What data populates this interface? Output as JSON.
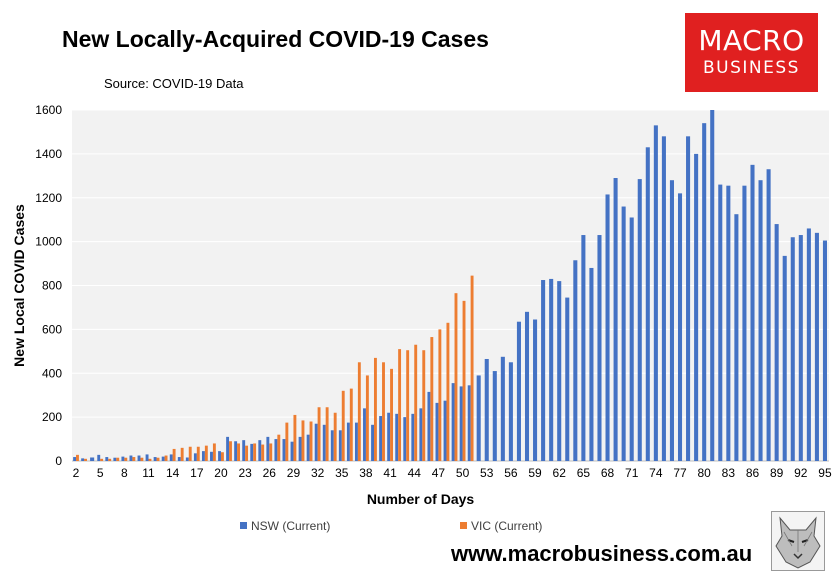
{
  "title": "New Locally-Acquired COVID-19 Cases",
  "source": "Source: COVID-19 Data",
  "logo": {
    "line1": "MACRO",
    "line2": "BUSINESS",
    "bg_color": "#e02020"
  },
  "website": "www.macrobusiness.com.au",
  "chart_data": {
    "type": "bar",
    "title": "New Locally-Acquired COVID-19 Cases",
    "xlabel": "Number of Days",
    "ylabel": "New Local COVID Cases",
    "ylim": [
      0,
      1600
    ],
    "yticks": [
      0,
      200,
      400,
      600,
      800,
      1000,
      1200,
      1400,
      1600
    ],
    "xticks": [
      2,
      5,
      8,
      11,
      14,
      17,
      20,
      23,
      26,
      29,
      32,
      35,
      38,
      41,
      44,
      47,
      50,
      53,
      56,
      59,
      62,
      65,
      68,
      71,
      74,
      77,
      80,
      83,
      86,
      89,
      92,
      95
    ],
    "x": [
      2,
      3,
      4,
      5,
      6,
      7,
      8,
      9,
      10,
      11,
      12,
      13,
      14,
      15,
      16,
      17,
      18,
      19,
      20,
      21,
      22,
      23,
      24,
      25,
      26,
      27,
      28,
      29,
      30,
      31,
      32,
      33,
      34,
      35,
      36,
      37,
      38,
      39,
      40,
      41,
      42,
      43,
      44,
      45,
      46,
      47,
      48,
      49,
      50,
      51,
      52,
      53,
      54,
      55,
      56,
      57,
      58,
      59,
      60,
      61,
      62,
      63,
      64,
      65,
      66,
      67,
      68,
      69,
      70,
      71,
      72,
      73,
      74,
      75,
      76,
      77,
      78,
      79,
      80,
      81,
      82,
      83,
      84,
      85,
      86,
      87,
      88,
      89,
      90,
      91,
      92,
      93,
      94,
      95
    ],
    "legend_position": "bottom",
    "series": [
      {
        "name": "NSW (Current)",
        "color": "#4472c4",
        "values": [
          18,
          12,
          16,
          28,
          18,
          15,
          20,
          25,
          25,
          30,
          18,
          20,
          30,
          18,
          16,
          35,
          45,
          42,
          45,
          110,
          90,
          95,
          78,
          95,
          110,
          100,
          100,
          88,
          110,
          120,
          170,
          165,
          140,
          140,
          175,
          175,
          240,
          165,
          205,
          220,
          215,
          200,
          215,
          240,
          315,
          265,
          275,
          355,
          340,
          345,
          390,
          465,
          410,
          475,
          450,
          635,
          680,
          645,
          825,
          830,
          820,
          745,
          915,
          1030,
          880,
          1030,
          1215,
          1290,
          1160,
          1110,
          1285,
          1430,
          1530,
          1480,
          1280,
          1220,
          1480,
          1400,
          1540,
          1600,
          1260,
          1255,
          1125,
          1255,
          1350,
          1280,
          1330,
          1080,
          935,
          1020,
          1030,
          1060,
          1040,
          1005
        ]
      },
      {
        "name": "VIC (Current)",
        "color": "#ed7d31",
        "values": [
          28,
          10,
          0,
          10,
          10,
          15,
          15,
          18,
          15,
          10,
          15,
          25,
          55,
          60,
          65,
          65,
          70,
          80,
          40,
          90,
          80,
          70,
          80,
          75,
          80,
          120,
          175,
          210,
          185,
          180,
          245,
          245,
          220,
          320,
          330,
          450,
          390,
          470,
          450,
          420,
          510,
          505,
          530,
          505,
          565,
          600,
          630,
          765,
          730,
          845,
          0,
          0,
          0,
          0,
          0,
          0,
          0,
          0,
          0,
          0,
          0,
          0,
          0,
          0,
          0,
          0,
          0,
          0,
          0,
          0,
          0,
          0,
          0,
          0,
          0,
          0,
          0,
          0,
          0,
          0,
          0,
          0,
          0,
          0,
          0,
          0,
          0,
          0,
          0,
          0,
          0,
          0,
          0,
          0
        ]
      }
    ]
  }
}
